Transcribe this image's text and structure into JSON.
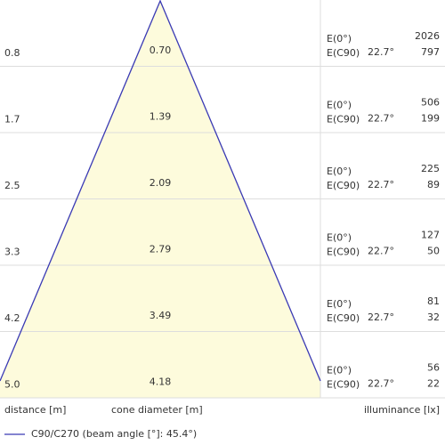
{
  "rows": [
    {
      "distance": "0.8",
      "diameter": "0.70",
      "e0_label": "E(0°)",
      "e0": "2026",
      "ec90_label": "E(C90)",
      "angle": "22.7°",
      "ec90": "797"
    },
    {
      "distance": "1.7",
      "diameter": "1.39",
      "e0_label": "E(0°)",
      "e0": "506",
      "ec90_label": "E(C90)",
      "angle": "22.7°",
      "ec90": "199"
    },
    {
      "distance": "2.5",
      "diameter": "2.09",
      "e0_label": "E(0°)",
      "e0": "225",
      "ec90_label": "E(C90)",
      "angle": "22.7°",
      "ec90": "89"
    },
    {
      "distance": "3.3",
      "diameter": "2.79",
      "e0_label": "E(0°)",
      "e0": "127",
      "ec90_label": "E(C90)",
      "angle": "22.7°",
      "ec90": "50"
    },
    {
      "distance": "4.2",
      "diameter": "3.49",
      "e0_label": "E(0°)",
      "e0": "81",
      "ec90_label": "E(C90)",
      "angle": "22.7°",
      "ec90": "32"
    },
    {
      "distance": "5.0",
      "diameter": "4.18",
      "e0_label": "E(0°)",
      "e0": "56",
      "ec90_label": "E(C90)",
      "angle": "22.7°",
      "ec90": "22"
    }
  ],
  "footer": {
    "distance": "distance [m]",
    "diameter": "cone diameter [m]",
    "illuminance": "illuminance [lx]"
  },
  "legend": {
    "label": "C90/C270 (beam angle [°]: 45.4°)"
  }
}
